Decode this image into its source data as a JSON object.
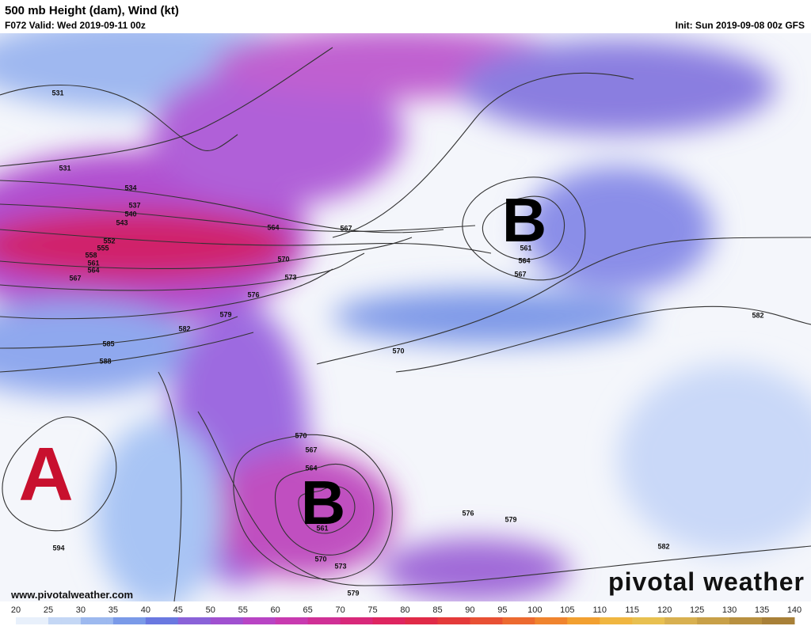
{
  "header": {
    "title": "500 mb Height (dam), Wind (kt)",
    "valid": "F072 Valid: Wed 2019-09-11 00z",
    "init": "Init: Sun 2019-09-08 00z GFS"
  },
  "map": {
    "centers": [
      "A",
      "B",
      "B"
    ],
    "contour_labels": [
      531,
      531,
      534,
      537,
      540,
      543,
      552,
      555,
      558,
      561,
      564,
      567,
      564,
      567,
      570,
      573,
      576,
      579,
      582,
      585,
      588,
      570,
      561,
      564,
      567,
      582,
      570,
      567,
      564,
      561,
      570,
      573,
      576,
      579,
      582,
      579,
      594
    ]
  },
  "footer": {
    "url": "www.pivotalweather.com",
    "logo": "pivotal weather"
  },
  "colorbar": {
    "labels": [
      20,
      25,
      30,
      35,
      40,
      45,
      50,
      55,
      60,
      65,
      70,
      75,
      80,
      85,
      90,
      95,
      100,
      105,
      110,
      115,
      120,
      125,
      130,
      135,
      140
    ]
  }
}
